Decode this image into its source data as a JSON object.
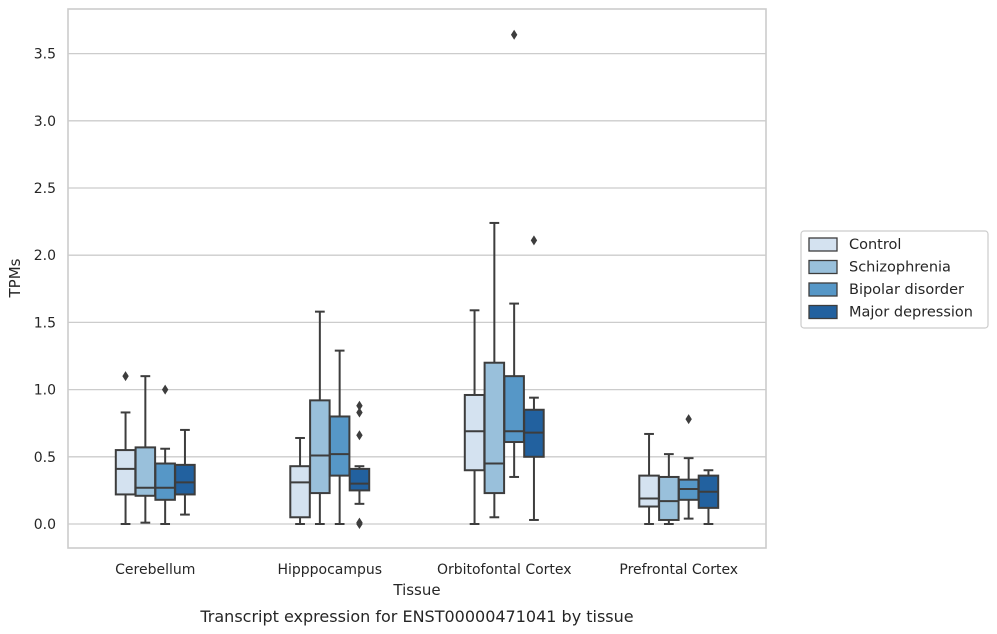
{
  "chart_data": {
    "type": "boxplot",
    "title": "",
    "caption": "Transcript expression for ENST00000471041 by tissue",
    "xlabel": "Tissue",
    "ylabel": "TPMs",
    "ylim": [
      -0.18,
      3.85
    ],
    "yticks": [
      0.0,
      0.5,
      1.0,
      1.5,
      2.0,
      2.5,
      3.0,
      3.5
    ],
    "ytick_labels": [
      "0.0",
      "0.5",
      "1.0",
      "1.5",
      "2.0",
      "2.5",
      "3.0",
      "3.5"
    ],
    "grid": "horizontal",
    "legend_position": "right",
    "categories": [
      "Cerebellum",
      "Hipppocampus",
      "Orbitofontal Cortex",
      "Prefrontal Cortex"
    ],
    "series": [
      {
        "name": "Control",
        "color": "#d4e2f0",
        "boxes": [
          {
            "whislo": 0.0,
            "q1": 0.22,
            "med": 0.41,
            "q3": 0.55,
            "whishi": 0.83,
            "fliers": [
              1.1
            ]
          },
          {
            "whislo": 0.0,
            "q1": 0.05,
            "med": 0.31,
            "q3": 0.43,
            "whishi": 0.64,
            "fliers": []
          },
          {
            "whislo": 0.0,
            "q1": 0.4,
            "med": 0.69,
            "q3": 0.96,
            "whishi": 1.59,
            "fliers": []
          },
          {
            "whislo": 0.0,
            "q1": 0.13,
            "med": 0.19,
            "q3": 0.36,
            "whishi": 0.67,
            "fliers": []
          }
        ]
      },
      {
        "name": "Schizophrenia",
        "color": "#99c0db",
        "boxes": [
          {
            "whislo": 0.01,
            "q1": 0.21,
            "med": 0.27,
            "q3": 0.57,
            "whishi": 1.1,
            "fliers": []
          },
          {
            "whislo": 0.0,
            "q1": 0.23,
            "med": 0.51,
            "q3": 0.92,
            "whishi": 1.58,
            "fliers": []
          },
          {
            "whislo": 0.05,
            "q1": 0.23,
            "med": 0.45,
            "q3": 1.2,
            "whishi": 2.24,
            "fliers": []
          },
          {
            "whislo": 0.0,
            "q1": 0.03,
            "med": 0.17,
            "q3": 0.35,
            "whishi": 0.52,
            "fliers": []
          }
        ]
      },
      {
        "name": "Bipolar disorder",
        "color": "#5697c7",
        "boxes": [
          {
            "whislo": 0.0,
            "q1": 0.18,
            "med": 0.27,
            "q3": 0.45,
            "whishi": 0.56,
            "fliers": [
              1.0
            ]
          },
          {
            "whislo": 0.0,
            "q1": 0.36,
            "med": 0.52,
            "q3": 0.8,
            "whishi": 1.29,
            "fliers": []
          },
          {
            "whislo": 0.35,
            "q1": 0.61,
            "med": 0.69,
            "q3": 1.1,
            "whishi": 1.64,
            "fliers": [
              3.64
            ]
          },
          {
            "whislo": 0.04,
            "q1": 0.18,
            "med": 0.26,
            "q3": 0.33,
            "whishi": 0.49,
            "fliers": [
              0.78
            ]
          }
        ]
      },
      {
        "name": "Major depression",
        "color": "#22619f",
        "boxes": [
          {
            "whislo": 0.07,
            "q1": 0.22,
            "med": 0.31,
            "q3": 0.44,
            "whishi": 0.7,
            "fliers": []
          },
          {
            "whislo": 0.15,
            "q1": 0.25,
            "med": 0.3,
            "q3": 0.41,
            "whishi": 0.43,
            "fliers": [
              0.88,
              0.83,
              0.66,
              0.0,
              0.01
            ]
          },
          {
            "whislo": 0.03,
            "q1": 0.5,
            "med": 0.68,
            "q3": 0.85,
            "whishi": 0.94,
            "fliers": [
              2.11
            ]
          },
          {
            "whislo": 0.0,
            "q1": 0.12,
            "med": 0.24,
            "q3": 0.36,
            "whishi": 0.4,
            "fliers": []
          }
        ]
      }
    ]
  }
}
